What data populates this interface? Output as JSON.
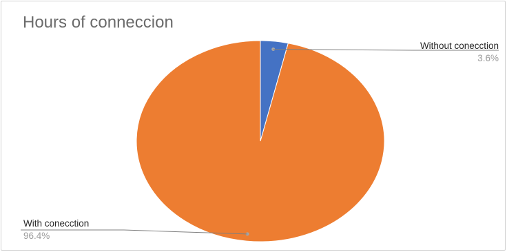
{
  "chart_data": {
    "type": "pie",
    "title": "Hours of conneccion",
    "categories": [
      "Without conecction",
      "With conecction"
    ],
    "values": [
      3.6,
      96.4
    ],
    "value_labels": [
      "3.6%",
      "96.4%"
    ],
    "colors": [
      "#4472c4",
      "#ed7d31"
    ],
    "legend": "none"
  }
}
